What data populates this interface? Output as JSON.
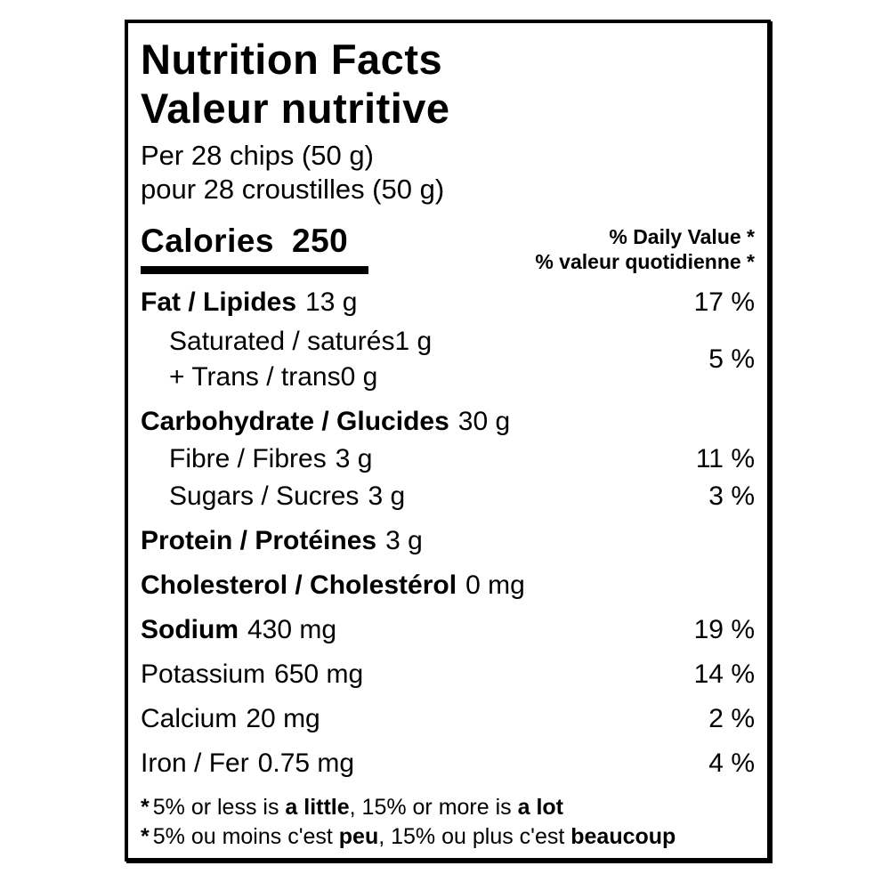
{
  "label": {
    "title_en": "Nutrition Facts",
    "title_fr": "Valeur nutritive",
    "serving_en": "Per 28 chips (50 g)",
    "serving_fr": "pour 28 croustilles (50 g)",
    "calories": {
      "label": "Calories",
      "value": "250"
    },
    "dv_header_en": "% Daily Value *",
    "dv_header_fr": "% valeur quotidienne *",
    "rows": {
      "fat": {
        "label": "Fat / Lipides",
        "amount": "13 g",
        "dv": "17 %"
      },
      "saturated": {
        "label": "Saturated / saturés",
        "amount": "1 g"
      },
      "trans": {
        "label": "+ Trans / trans",
        "amount": "0 g"
      },
      "saturated_trans_dv": "5 %",
      "carbohydrate": {
        "label": "Carbohydrate / Glucides",
        "amount": "30 g"
      },
      "fibre": {
        "label": "Fibre / Fibres",
        "amount": "3 g",
        "dv": "11 %"
      },
      "sugars": {
        "label": "Sugars / Sucres",
        "amount": "3 g",
        "dv": "3 %"
      },
      "protein": {
        "label": "Protein / Protéines",
        "amount": "3 g"
      },
      "cholesterol": {
        "label": "Cholesterol / Cholestérol",
        "amount": "0 mg"
      },
      "sodium": {
        "label": "Sodium",
        "amount": "430 mg",
        "dv": "19 %"
      },
      "potassium": {
        "label": "Potassium",
        "amount": "650 mg",
        "dv": "14 %"
      },
      "calcium": {
        "label": "Calcium",
        "amount": "20 mg",
        "dv": "2 %"
      },
      "iron": {
        "label": "Iron / Fer",
        "amount": "0.75 mg",
        "dv": "4 %"
      }
    },
    "footnote_en": {
      "star": "*",
      "pre": "5% or less is ",
      "bold1": "a little",
      "mid": ", 15% or more is ",
      "bold2": "a lot"
    },
    "footnote_fr": {
      "star": "*",
      "pre": "5% ou moins c'est ",
      "bold1": "peu",
      "mid": ", 15% ou plus c'est ",
      "bold2": "beaucoup"
    },
    "colors": {
      "ink": "#000000",
      "background": "#ffffff"
    }
  }
}
